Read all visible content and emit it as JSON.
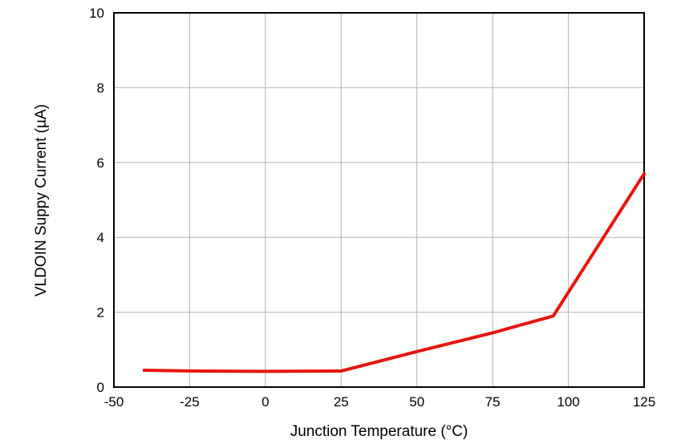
{
  "chart_data": {
    "type": "line",
    "title": "",
    "xlabel": "Junction Temperature (°C)",
    "ylabel": "VLDOIN Suppy Current (µA)",
    "xlim": [
      -50,
      125
    ],
    "ylim": [
      0,
      10
    ],
    "xticks": [
      -50,
      -25,
      0,
      25,
      50,
      75,
      100,
      125
    ],
    "yticks": [
      0,
      2,
      4,
      6,
      8,
      10
    ],
    "grid": true,
    "legend": "none",
    "series": [
      {
        "name": "VLDOIN supply current",
        "color": "#e8140c",
        "x": [
          -40,
          -25,
          0,
          25,
          50,
          75,
          95,
          125
        ],
        "y": [
          0.45,
          0.43,
          0.42,
          0.43,
          0.95,
          1.45,
          1.9,
          5.7
        ]
      }
    ],
    "colors": {
      "line": "#e8140c",
      "grid": "#b3b3b3",
      "frame": "#000000",
      "background": "#ffffff"
    }
  }
}
